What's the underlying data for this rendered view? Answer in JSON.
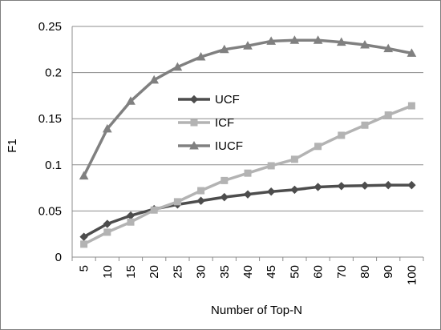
{
  "chart_data": {
    "type": "line",
    "title": "",
    "xlabel": "Number of Top-N",
    "ylabel": "F1",
    "categories": [
      "5",
      "10",
      "15",
      "20",
      "25",
      "30",
      "35",
      "40",
      "45",
      "50",
      "60",
      "70",
      "80",
      "90",
      "100"
    ],
    "ylim": [
      0,
      0.25
    ],
    "yticks": [
      "0",
      "0.05",
      "0.1",
      "0.15",
      "0.2",
      "0.25"
    ],
    "grid": "horizontal",
    "legend_position": "center-left",
    "series": [
      {
        "name": "UCF",
        "color": "#4d4d4d",
        "marker": "diamond",
        "values": [
          0.022,
          0.036,
          0.045,
          0.052,
          0.057,
          0.061,
          0.065,
          0.068,
          0.071,
          0.073,
          0.076,
          0.077,
          0.0775,
          0.078,
          0.078
        ]
      },
      {
        "name": "ICF",
        "color": "#b3b3b3",
        "marker": "square",
        "values": [
          0.014,
          0.027,
          0.038,
          0.051,
          0.06,
          0.072,
          0.083,
          0.091,
          0.099,
          0.106,
          0.12,
          0.132,
          0.143,
          0.154,
          0.164
        ]
      },
      {
        "name": "IUCF",
        "color": "#808080",
        "marker": "triangle",
        "values": [
          0.088,
          0.139,
          0.169,
          0.192,
          0.206,
          0.217,
          0.225,
          0.229,
          0.234,
          0.235,
          0.235,
          0.233,
          0.23,
          0.226,
          0.221
        ]
      }
    ]
  }
}
